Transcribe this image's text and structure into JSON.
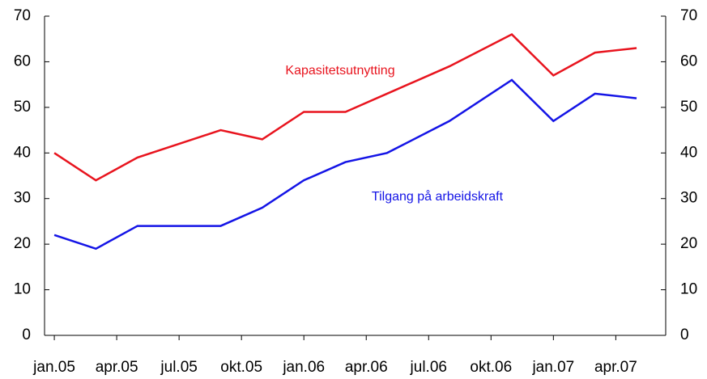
{
  "chart_data": {
    "type": "line",
    "x": [
      0,
      2,
      4,
      8,
      10,
      12,
      14,
      16,
      19,
      22,
      24,
      26,
      28
    ],
    "series": [
      {
        "name": "Kapasitetsutnytting",
        "color": "#e8141e",
        "values": [
          40,
          34,
          39,
          45,
          43,
          49,
          49,
          53,
          59,
          66,
          57,
          62,
          63
        ]
      },
      {
        "name": "Tilgang på arbeidskraft",
        "color": "#1414e6",
        "values": [
          22,
          19,
          24,
          24,
          28,
          34,
          38,
          40,
          47,
          56,
          47,
          53,
          52
        ]
      }
    ],
    "xlim": [
      -0.47,
      29.4
    ],
    "xticks": [
      {
        "value": 0,
        "label": "jan.05"
      },
      {
        "value": 3,
        "label": "apr.05"
      },
      {
        "value": 6,
        "label": "jul.05"
      },
      {
        "value": 9,
        "label": "okt.05"
      },
      {
        "value": 12,
        "label": "jan.06"
      },
      {
        "value": 15,
        "label": "apr.06"
      },
      {
        "value": 18,
        "label": "jul.06"
      },
      {
        "value": 21,
        "label": "okt.06"
      },
      {
        "value": 24,
        "label": "jan.07"
      },
      {
        "value": 27,
        "label": "apr.07"
      }
    ],
    "ylim": [
      0,
      70
    ],
    "yticks": [
      0,
      10,
      20,
      30,
      40,
      50,
      60,
      70
    ],
    "y2lim": [
      0,
      70
    ],
    "y2ticks": [
      0,
      10,
      20,
      30,
      40,
      50,
      60,
      70
    ]
  }
}
